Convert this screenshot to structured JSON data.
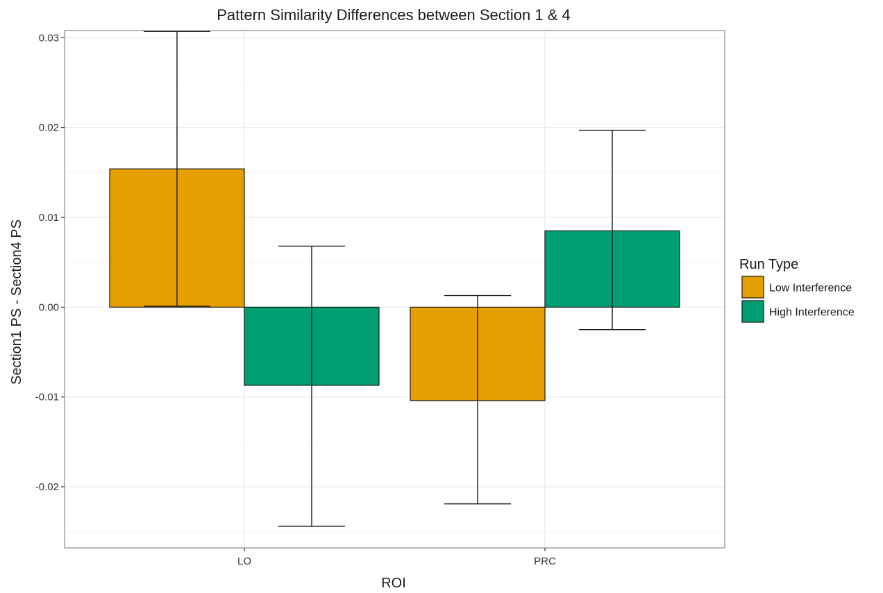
{
  "chart_data": {
    "type": "bar",
    "title": "Pattern Similarity Differences between Section 1 & 4",
    "xlabel": "ROI",
    "ylabel": "Section1 PS - Section4 PS",
    "categories": [
      "LO",
      "PRC"
    ],
    "series": [
      {
        "name": "Low Interference",
        "color": "#E69F00",
        "values": [
          0.0154,
          -0.0104
        ],
        "error_low": [
          0.0001,
          -0.0219
        ],
        "error_high": [
          0.0307,
          0.0013
        ]
      },
      {
        "name": "High Interference",
        "color": "#009E73",
        "values": [
          -0.0087,
          0.0085
        ],
        "error_low": [
          -0.0244,
          -0.0025
        ],
        "error_high": [
          0.0068,
          0.0197
        ]
      }
    ],
    "ylim": [
      -0.0268,
      0.0308
    ],
    "yticks": [
      -0.02,
      -0.01,
      0.0,
      0.01,
      0.02,
      0.03
    ],
    "ytick_labels": [
      "-0.02",
      "-0.01",
      "0.00",
      "0.01",
      "0.02",
      "0.03"
    ],
    "legend": {
      "title": "Run Type",
      "position": "right"
    },
    "grid": true
  }
}
